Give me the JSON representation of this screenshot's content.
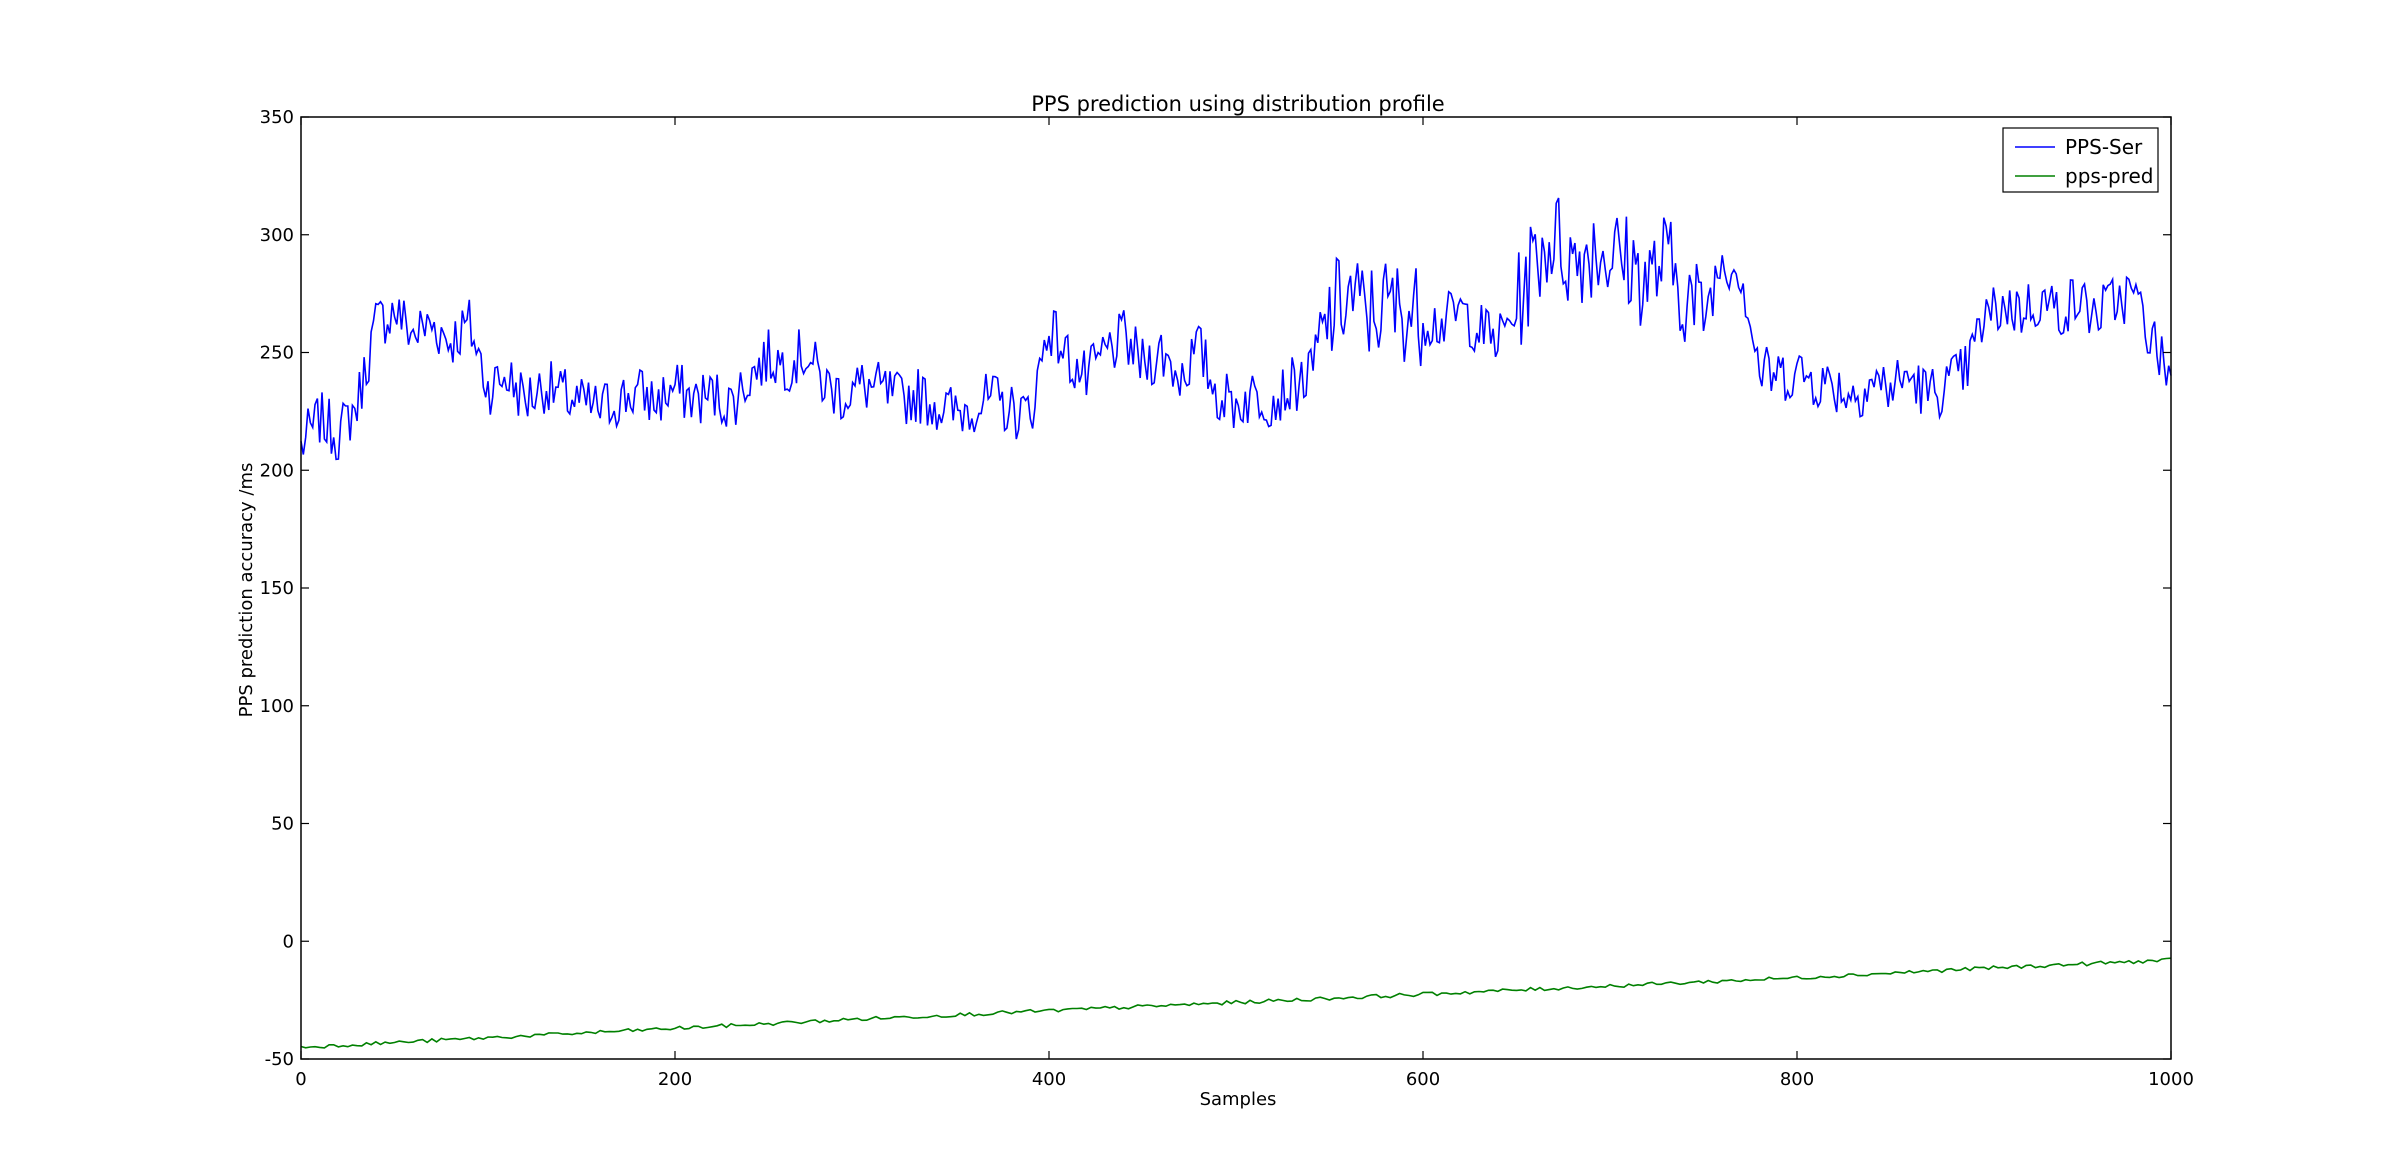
{
  "chart_data": {
    "type": "line",
    "title": "PPS prediction using distribution profile",
    "xlabel": "Samples",
    "ylabel": "PPS prediction accuracy /ms",
    "xlim": [
      0,
      1000
    ],
    "ylim": [
      -50,
      350
    ],
    "xticks": [
      0,
      200,
      400,
      600,
      800,
      1000
    ],
    "yticks": [
      -50,
      0,
      50,
      100,
      150,
      200,
      250,
      300,
      350
    ],
    "grid": false,
    "legend": "top-right",
    "series": [
      {
        "name": "PPS-Ser",
        "color": "#0000ff",
        "x": [
          0,
          10,
          20,
          30,
          40,
          50,
          60,
          70,
          80,
          90,
          100,
          110,
          120,
          130,
          140,
          150,
          160,
          170,
          180,
          190,
          200,
          210,
          220,
          230,
          240,
          250,
          260,
          270,
          280,
          290,
          300,
          310,
          320,
          330,
          340,
          350,
          360,
          370,
          380,
          390,
          400,
          410,
          420,
          430,
          440,
          450,
          460,
          470,
          480,
          490,
          500,
          510,
          520,
          530,
          540,
          550,
          560,
          570,
          580,
          590,
          600,
          610,
          620,
          630,
          640,
          650,
          660,
          670,
          680,
          690,
          700,
          710,
          720,
          730,
          740,
          750,
          760,
          770,
          780,
          790,
          800,
          810,
          820,
          830,
          840,
          850,
          860,
          870,
          880,
          890,
          900,
          910,
          920,
          930,
          940,
          950,
          960,
          970,
          980,
          990,
          1000
        ],
        "y": [
          210,
          222,
          215,
          228,
          262,
          268,
          258,
          262,
          255,
          262,
          235,
          240,
          230,
          236,
          232,
          228,
          226,
          230,
          233,
          229,
          235,
          230,
          232,
          228,
          240,
          248,
          245,
          250,
          236,
          232,
          236,
          234,
          230,
          232,
          228,
          224,
          228,
          230,
          225,
          224,
          262,
          248,
          238,
          250,
          256,
          245,
          250,
          240,
          252,
          232,
          228,
          232,
          230,
          236,
          240,
          265,
          275,
          266,
          270,
          268,
          265,
          262,
          268,
          260,
          255,
          268,
          290,
          300,
          288,
          295,
          292,
          288,
          280,
          290,
          275,
          265,
          290,
          285,
          242,
          240,
          242,
          238,
          236,
          232,
          238,
          235,
          240,
          232,
          236,
          242,
          264,
          270,
          268,
          272,
          268,
          272,
          266,
          272,
          275,
          255,
          240
        ]
      },
      {
        "name": "pps-pred",
        "color": "#008000",
        "x": [
          0,
          100,
          200,
          300,
          400,
          500,
          600,
          700,
          800,
          900,
          1000
        ],
        "y": [
          -45,
          -41,
          -37,
          -33,
          -29.5,
          -26,
          -22.5,
          -19,
          -15.5,
          -11.5,
          -8
        ]
      }
    ]
  }
}
